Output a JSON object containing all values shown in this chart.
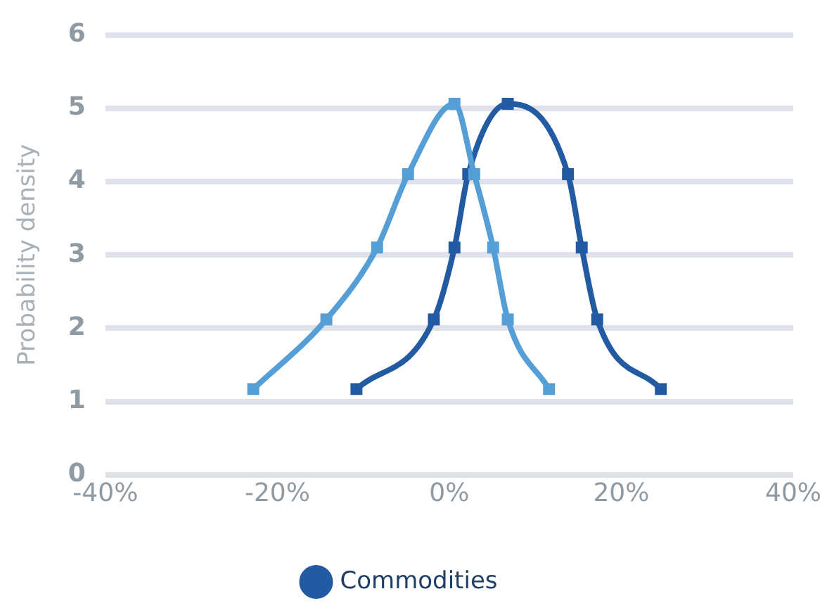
{
  "chart_data": {
    "type": "line",
    "ylabel": "Probability density",
    "xlim": [
      -40,
      40
    ],
    "xticks": [
      {
        "value": -40,
        "label": "-40%"
      },
      {
        "value": -20,
        "label": "-20%"
      },
      {
        "value": 0,
        "label": "0%"
      },
      {
        "value": 20,
        "label": "20%"
      },
      {
        "value": 40,
        "label": "40%"
      }
    ],
    "ylim": [
      0,
      6
    ],
    "yticks": [
      0,
      1,
      2,
      3,
      4,
      5,
      6
    ],
    "grid": "y",
    "legend": "bottom",
    "marker": "square",
    "line_style": "solid",
    "series": [
      {
        "color": "#559fd6",
        "x": [
          -22.8,
          -14.3,
          -8.4,
          -4.8,
          0.6,
          2.9,
          5.1,
          6.8,
          11.6
        ],
        "values": [
          1.17,
          2.12,
          3.1,
          4.1,
          5.06,
          4.1,
          3.1,
          2.12,
          1.17
        ]
      },
      {
        "name": "Commodities",
        "color": "#235ba3",
        "x": [
          -10.8,
          -1.8,
          0.6,
          2.2,
          6.8,
          13.8,
          15.4,
          17.2,
          24.6
        ],
        "values": [
          1.17,
          2.12,
          3.1,
          4.1,
          5.06,
          4.1,
          3.1,
          2.12,
          1.17
        ]
      }
    ]
  }
}
